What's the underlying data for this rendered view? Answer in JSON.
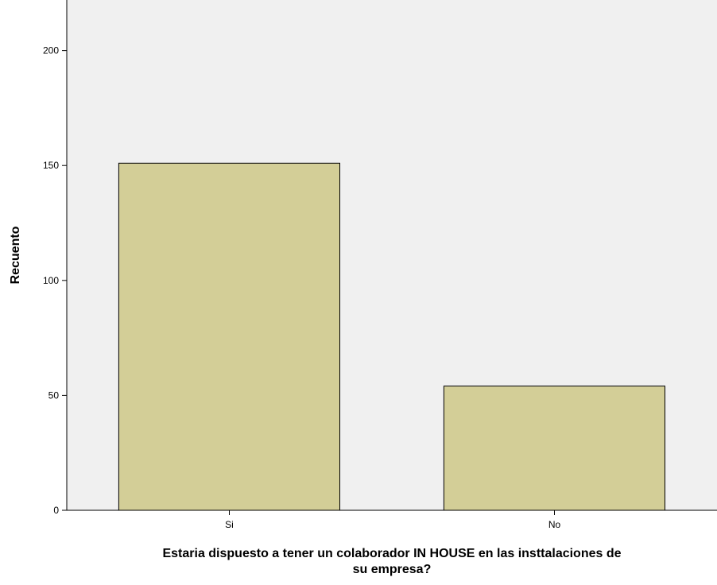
{
  "chart_data": {
    "type": "bar",
    "categories": [
      "Si",
      "No"
    ],
    "values": [
      151,
      54
    ],
    "title": "",
    "xlabel_lines": [
      "Estaria dispuesto a tener un colaborador IN HOUSE en las insttalaciones de",
      "su empresa?"
    ],
    "ylabel": "Recuento",
    "yticks": [
      0,
      50,
      100,
      150,
      200
    ],
    "ylim": [
      0,
      222
    ],
    "grid": false,
    "colors": {
      "plot_background": "#f0f0f0",
      "bar_fill": "#d3ce97",
      "bar_stroke": "#000000",
      "axis": "#000000"
    }
  }
}
